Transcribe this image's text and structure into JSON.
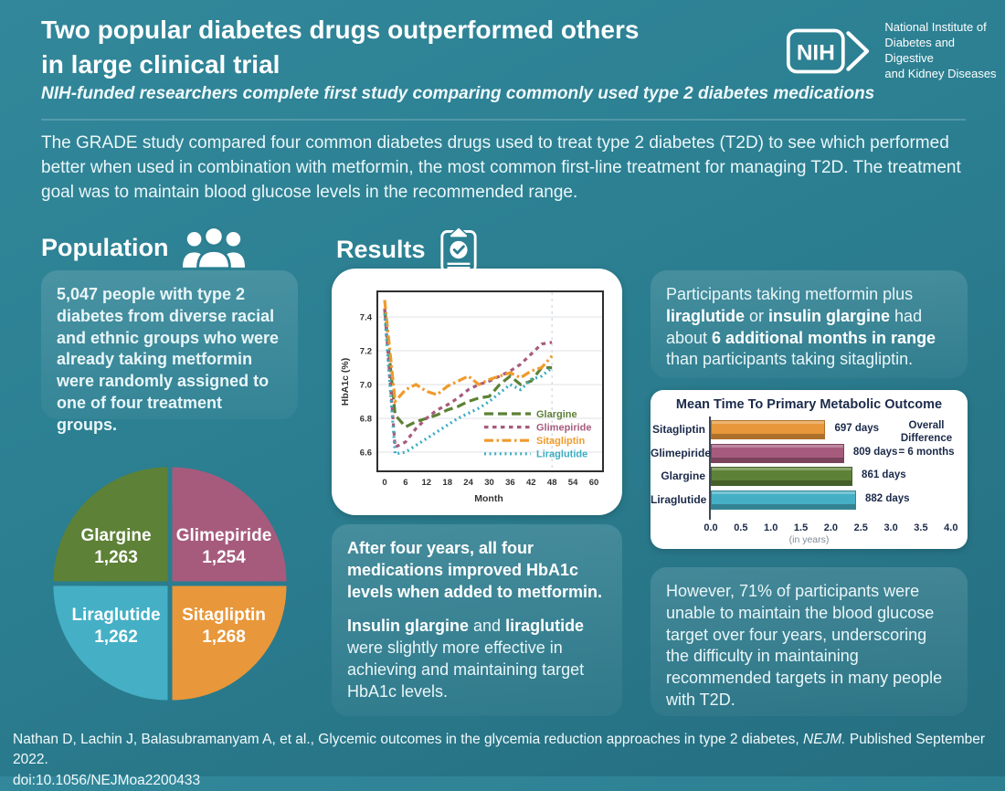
{
  "colors": {
    "background_teal": "#2b7f91",
    "navy_text": "#1b2a4a",
    "glargine_green": "#5d8136",
    "glimepiride_mauve": "#a65b7d",
    "sitagliptin_orange": "#e8973a",
    "liraglutide_teal": "#45b0c5"
  },
  "header": {
    "title_line1": "Two popular diabetes drugs outperformed others",
    "title_line2": "in large clinical trial",
    "subtitle": "NIH-funded researchers complete first study comparing commonly used type 2 diabetes medications",
    "nih_logo_text": "NIH",
    "nih_org_line1": "National Institute of",
    "nih_org_line2": "Diabetes and Digestive",
    "nih_org_line3": "and Kidney Diseases"
  },
  "intro": "The GRADE study compared four common diabetes drugs used to treat type 2 diabetes (T2D) to see which performed better when used in combination with metformin, the most common first-line treatment for managing T2D. The treatment goal was to maintain blood glucose levels in the recommended range.",
  "population": {
    "heading": "Population",
    "description": "5,047 people with type 2 diabetes from diverse racial and ethnic groups who were already taking metformin were randomly assigned to one of four treatment groups."
  },
  "results": {
    "heading": "Results"
  },
  "callouts": {
    "months_in_range": [
      {
        "t": "Participants taking metformin plus "
      },
      {
        "t": "liraglutide",
        "b": 1
      },
      {
        "t": " or "
      },
      {
        "t": "insulin glargine",
        "b": 1
      },
      {
        "t": " had about "
      },
      {
        "t": "6 additional months in range",
        "b": 1
      },
      {
        "t": " than participants taking sitagliptin."
      }
    ],
    "after_four_years_p1": [
      {
        "t": "After four years, all four medications improved HbA1c levels when added to metformin.",
        "b": 1
      }
    ],
    "after_four_years_p2": [
      {
        "t": "Insulin glargine",
        "b": 1
      },
      {
        "t": " and "
      },
      {
        "t": "liraglutide",
        "b": 1
      },
      {
        "t": " were slightly more effective in achieving and maintaining target HbA1c levels."
      }
    ],
    "however": [
      {
        "t": "However, 71% of participants were unable to maintain the blood glucose target over four years, underscoring the difficulty in maintaining recommended targets in many people with T2D."
      }
    ]
  },
  "chart_data": [
    {
      "type": "line",
      "title": "",
      "xlabel": "Month",
      "ylabel": "HbA1c (%)",
      "x_ticks": [
        0,
        6,
        12,
        18,
        24,
        30,
        36,
        42,
        48,
        54,
        60
      ],
      "y_ticks": [
        6.6,
        6.8,
        7.0,
        7.2,
        7.4
      ],
      "xlim": [
        -2,
        62
      ],
      "ylim": [
        6.45,
        7.55
      ],
      "grid": true,
      "vline_x": 48,
      "legend_position": "inside-lower-right",
      "x": [
        0,
        3,
        6,
        9,
        12,
        15,
        18,
        21,
        24,
        27,
        30,
        33,
        36,
        39,
        42,
        45,
        48
      ],
      "series": [
        {
          "name": "Glargine",
          "color": "#5d8136",
          "dash": "long-dash",
          "values": [
            7.45,
            6.82,
            6.75,
            6.78,
            6.8,
            6.82,
            6.85,
            6.87,
            6.9,
            6.92,
            6.93,
            7.0,
            7.05,
            7.0,
            7.02,
            7.1,
            7.1
          ]
        },
        {
          "name": "Glimepiride",
          "color": "#a65b7d",
          "dash": "short-dash",
          "values": [
            7.45,
            6.63,
            6.66,
            6.74,
            6.8,
            6.85,
            6.88,
            6.92,
            6.97,
            7.0,
            7.02,
            7.05,
            7.08,
            7.12,
            7.18,
            7.24,
            7.25
          ]
        },
        {
          "name": "Sitagliptin",
          "color": "#ef9b2d",
          "dash": "dash-dot",
          "values": [
            7.5,
            6.9,
            6.97,
            7.0,
            6.96,
            6.94,
            6.99,
            7.02,
            7.05,
            7.0,
            7.03,
            7.05,
            7.07,
            7.04,
            7.08,
            7.1,
            7.17
          ]
        },
        {
          "name": "Liraglutide",
          "color": "#3cadc2",
          "dash": "dot",
          "values": [
            7.42,
            6.59,
            6.6,
            6.64,
            6.68,
            6.72,
            6.76,
            6.8,
            6.83,
            6.86,
            6.9,
            6.95,
            7.0,
            6.97,
            7.03,
            7.05,
            7.1
          ]
        }
      ]
    },
    {
      "type": "pie",
      "slices": [
        {
          "label": "Glargine",
          "value": 1263,
          "value_label": "1,263",
          "color": "#5d8136",
          "position": "top-left"
        },
        {
          "label": "Glimepiride",
          "value": 1254,
          "value_label": "1,254",
          "color": "#a65b7d",
          "position": "top-right"
        },
        {
          "label": "Sitagliptin",
          "value": 1268,
          "value_label": "1,268",
          "color": "#e8973a",
          "position": "bottom-right"
        },
        {
          "label": "Liraglutide",
          "value": 1262,
          "value_label": "1,262",
          "color": "#45b0c5",
          "position": "bottom-left"
        }
      ]
    },
    {
      "type": "bar",
      "title": "Mean Time To Primary Metabolic Outcome",
      "categories": [
        "Sitagliptin",
        "Glimepiride",
        "Glargine",
        "Liraglutide"
      ],
      "values_years": [
        1.91,
        2.22,
        2.36,
        2.42
      ],
      "values_days": [
        697,
        809,
        861,
        882
      ],
      "bar_labels": [
        "697 days",
        "809 days",
        "861 days",
        "882 days"
      ],
      "colors": [
        "#e8973a",
        "#a65b7d",
        "#5d8136",
        "#45b0c5"
      ],
      "annotation_lines": [
        "Overall",
        "Difference",
        "= 6 months"
      ],
      "x_ticks": [
        "0.0",
        "0.5",
        "1.0",
        "1.5",
        "2.0",
        "2.5",
        "3.0",
        "3.5",
        "4.0"
      ],
      "xlim": [
        0,
        4
      ],
      "xlabel": "(in years)"
    }
  ],
  "footer": {
    "line1": [
      {
        "t": "Nathan D, Lachin J, Balasubramanyam A, et al., Glycemic outcomes in the glycemia reduction approaches in type 2 diabetes, "
      },
      {
        "t": "NEJM.",
        "i": 1
      },
      {
        "t": " Published September 2022."
      }
    ],
    "line2": "doi:10.1056/NEJMoa2200433"
  }
}
